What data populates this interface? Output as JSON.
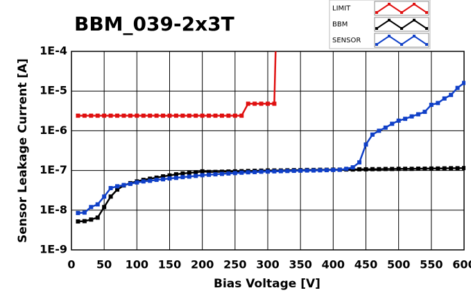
{
  "chart_data": {
    "type": "line",
    "title": "BBM_039-2x3T",
    "x_label": "Bias Voltage [V]",
    "y_label": "Sensor Leakage Current [A]",
    "log_y": true,
    "grid": true,
    "legend": "top-right",
    "xlim": [
      0,
      600
    ],
    "xticks": [
      0,
      50,
      100,
      150,
      200,
      250,
      300,
      350,
      400,
      450,
      500,
      550,
      600
    ],
    "ylim": [
      1e-09,
      0.0001
    ],
    "yticks": [
      {
        "value": 1e-09,
        "label": "1E-9"
      },
      {
        "value": 1e-08,
        "label": "1E-8"
      },
      {
        "value": 1e-07,
        "label": "1E-7"
      },
      {
        "value": 1e-06,
        "label": "1E-6"
      },
      {
        "value": 1e-05,
        "label": "1E-5"
      },
      {
        "value": 0.0001,
        "label": "1E-4"
      }
    ],
    "series": [
      {
        "name": "LIMIT",
        "color": "#e01010",
        "x": [
          10,
          20,
          30,
          40,
          50,
          60,
          70,
          80,
          90,
          100,
          110,
          120,
          130,
          140,
          150,
          160,
          170,
          180,
          190,
          200,
          210,
          220,
          230,
          240,
          250,
          260,
          270,
          280,
          290,
          300,
          310,
          312
        ],
        "values": [
          2.4e-06,
          2.4e-06,
          2.4e-06,
          2.4e-06,
          2.4e-06,
          2.4e-06,
          2.4e-06,
          2.4e-06,
          2.4e-06,
          2.4e-06,
          2.4e-06,
          2.4e-06,
          2.4e-06,
          2.4e-06,
          2.4e-06,
          2.4e-06,
          2.4e-06,
          2.4e-06,
          2.4e-06,
          2.4e-06,
          2.4e-06,
          2.4e-06,
          2.4e-06,
          2.4e-06,
          2.4e-06,
          2.4e-06,
          4.8e-06,
          4.8e-06,
          4.8e-06,
          4.8e-06,
          4.8e-06,
          0.0001
        ]
      },
      {
        "name": "BBM",
        "color": "#000000",
        "x": [
          10,
          20,
          30,
          40,
          50,
          60,
          70,
          80,
          90,
          100,
          110,
          120,
          130,
          140,
          150,
          160,
          170,
          180,
          190,
          200,
          210,
          220,
          230,
          240,
          250,
          260,
          270,
          280,
          290,
          300,
          310,
          320,
          330,
          340,
          350,
          360,
          370,
          380,
          390,
          400,
          410,
          420,
          430,
          440,
          450,
          460,
          470,
          480,
          490,
          500,
          510,
          520,
          530,
          540,
          550,
          560,
          570,
          580,
          590,
          600
        ],
        "values": [
          5.2e-09,
          5.3e-09,
          5.8e-09,
          6.5e-09,
          1.2e-08,
          2.2e-08,
          3.3e-08,
          4.2e-08,
          4.8e-08,
          5.3e-08,
          5.8e-08,
          6.2e-08,
          6.6e-08,
          7.1e-08,
          7.5e-08,
          8e-08,
          8.4e-08,
          8.7e-08,
          9e-08,
          9.5e-08,
          9.2e-08,
          9.2e-08,
          9.3e-08,
          9.4e-08,
          9.5e-08,
          9.6e-08,
          9.7e-08,
          9.8e-08,
          9.9e-08,
          1e-07,
          1e-07,
          1e-07,
          1.01e-07,
          1.02e-07,
          1.02e-07,
          1.03e-07,
          1.03e-07,
          1.04e-07,
          1.04e-07,
          1.05e-07,
          1.05e-07,
          1.06e-07,
          1.06e-07,
          1.07e-07,
          1.07e-07,
          1.08e-07,
          1.08e-07,
          1.09e-07,
          1.09e-07,
          1.1e-07,
          1.1e-07,
          1.1e-07,
          1.11e-07,
          1.11e-07,
          1.12e-07,
          1.12e-07,
          1.13e-07,
          1.14e-07,
          1.14e-07,
          1.15e-07
        ]
      },
      {
        "name": "SENSOR",
        "color": "#1040c8",
        "x": [
          10,
          20,
          30,
          40,
          50,
          60,
          70,
          80,
          90,
          100,
          110,
          120,
          130,
          140,
          150,
          160,
          170,
          180,
          190,
          200,
          210,
          220,
          230,
          240,
          250,
          260,
          270,
          280,
          290,
          300,
          310,
          320,
          330,
          340,
          350,
          360,
          370,
          380,
          390,
          400,
          410,
          420,
          430,
          440,
          450,
          460,
          470,
          480,
          490,
          500,
          510,
          520,
          530,
          540,
          550,
          560,
          570,
          580,
          590,
          600
        ],
        "values": [
          8.5e-09,
          8.7e-09,
          1.2e-08,
          1.4e-08,
          2.2e-08,
          3.6e-08,
          4e-08,
          4.3e-08,
          4.6e-08,
          5e-08,
          5.3e-08,
          5.5e-08,
          5.8e-08,
          6e-08,
          6.3e-08,
          6.5e-08,
          6.8e-08,
          7e-08,
          7.3e-08,
          7.6e-08,
          7.8e-08,
          8e-08,
          8.2e-08,
          8.4e-08,
          8.6e-08,
          8.8e-08,
          9e-08,
          9.1e-08,
          9.3e-08,
          9.4e-08,
          9.5e-08,
          9.6e-08,
          9.7e-08,
          9.8e-08,
          9.9e-08,
          1e-07,
          1e-07,
          1.01e-07,
          1.02e-07,
          1.03e-07,
          1.04e-07,
          1.1e-07,
          1.2e-07,
          1.6e-07,
          4.5e-07,
          8e-07,
          1e-06,
          1.2e-06,
          1.5e-06,
          1.8e-06,
          2e-06,
          2.3e-06,
          2.6e-06,
          3e-06,
          4.5e-06,
          5e-06,
          6.5e-06,
          8e-06,
          1.2e-05,
          1.6e-05
        ]
      }
    ]
  }
}
